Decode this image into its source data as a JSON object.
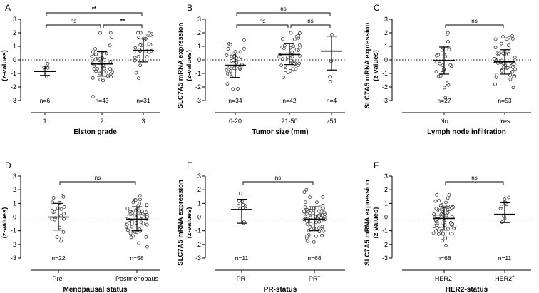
{
  "figure": {
    "y_axis": {
      "label_line1": "SLC7A5 mRNA expression",
      "label_line2": "(z-values)",
      "ticks": [
        -3,
        -2,
        -1,
        0,
        1,
        2,
        3
      ],
      "ylim": [
        -3,
        3
      ]
    }
  },
  "chart_data": [
    {
      "type": "scatter",
      "panel": "A",
      "xlabel": "Elston grade",
      "ylabel": "SLC7A5 mRNA expression (z-values)",
      "ylim": [
        -3,
        3
      ],
      "groups": [
        {
          "label": "1",
          "label_sup": "",
          "n_label": "n=6",
          "n": 6,
          "mean": -0.85,
          "sd_low": -1.15,
          "sd_high": -0.45,
          "spread": 0.4
        },
        {
          "label": "2",
          "label_sup": "",
          "n_label": "n=43",
          "n": 43,
          "mean": -0.3,
          "sd_low": -1.2,
          "sd_high": 0.6,
          "spread": 0.85
        },
        {
          "label": "3",
          "label_sup": "",
          "n_label": "n=31",
          "n": 31,
          "mean": 0.7,
          "sd_low": -0.15,
          "sd_high": 1.6,
          "spread": 0.8
        }
      ],
      "comparisons": [
        {
          "from": 0,
          "to": 2,
          "label": "**",
          "level": 2
        },
        {
          "from": 0,
          "to": 1,
          "label": "ns",
          "level": 1
        },
        {
          "from": 1,
          "to": 2,
          "label": "**",
          "level": 1
        }
      ]
    },
    {
      "type": "scatter",
      "panel": "B",
      "xlabel": "Tumor size (mm)",
      "ylabel": "SLC7A5 mRNA expression (z-values)",
      "ylim": [
        -3,
        3
      ],
      "groups": [
        {
          "label": "0-20",
          "label_sup": "",
          "n_label": "n=34",
          "n": 34,
          "mean": -0.4,
          "sd_low": -1.3,
          "sd_high": 0.5,
          "spread": 0.85
        },
        {
          "label": "21-50",
          "label_sup": "",
          "n_label": "n=42",
          "n": 42,
          "mean": 0.4,
          "sd_low": -0.35,
          "sd_high": 1.2,
          "spread": 0.8
        },
        {
          "label": ">51",
          "label_sup": "",
          "n_label": "n=4",
          "n": 4,
          "mean": 0.65,
          "sd_low": -0.75,
          "sd_high": 1.75,
          "spread": 1.0
        }
      ],
      "comparisons": [
        {
          "from": 0,
          "to": 2,
          "label": "ns",
          "level": 2
        },
        {
          "from": 0,
          "to": 1,
          "label": "ns",
          "level": 1
        },
        {
          "from": 1,
          "to": 2,
          "label": "ns",
          "level": 1
        }
      ]
    },
    {
      "type": "scatter",
      "panel": "C",
      "xlabel": "Lymph node infiltration",
      "ylabel": "SLC7A5 mRNA expression (z-values)",
      "ylim": [
        -3,
        3
      ],
      "groups": [
        {
          "label": "No",
          "label_sup": "",
          "n_label": "n=27",
          "n": 27,
          "mean": -0.05,
          "sd_low": -1.05,
          "sd_high": 0.95,
          "spread": 0.9
        },
        {
          "label": "Yes",
          "label_sup": "",
          "n_label": "n=53",
          "n": 53,
          "mean": -0.15,
          "sd_low": -1.05,
          "sd_high": 0.75,
          "spread": 0.85
        }
      ],
      "comparisons": [
        {
          "from": 0,
          "to": 1,
          "label": "ns",
          "level": 1
        }
      ]
    },
    {
      "type": "scatter",
      "panel": "D",
      "xlabel": "Menopausal status",
      "ylabel": "SLC7A5 mRNA expression (z-values)",
      "ylim": [
        -3,
        3
      ],
      "groups": [
        {
          "label": "Pre-",
          "label_sup": "",
          "n_label": "n=22",
          "n": 22,
          "mean": 0.0,
          "sd_low": -0.95,
          "sd_high": 1.0,
          "spread": 0.9
        },
        {
          "label": "Postmenopaus",
          "label_sup": "",
          "n_label": "n=58",
          "n": 58,
          "mean": -0.15,
          "sd_low": -1.0,
          "sd_high": 0.75,
          "spread": 0.85
        }
      ],
      "comparisons": [
        {
          "from": 0,
          "to": 1,
          "label": "ns",
          "level": 1
        }
      ]
    },
    {
      "type": "scatter",
      "panel": "E",
      "xlabel": "PR-status",
      "ylabel": "SLC7A5 mRNA expression (z-values)",
      "ylim": [
        -3,
        3
      ],
      "groups": [
        {
          "label": "PR",
          "label_sup": "-",
          "n_label": "n=11",
          "n": 11,
          "mean": 0.55,
          "sd_low": -0.45,
          "sd_high": 1.3,
          "spread": 0.75
        },
        {
          "label": "PR",
          "label_sup": "+",
          "n_label": "n=68",
          "n": 68,
          "mean": -0.15,
          "sd_low": -1.0,
          "sd_high": 0.75,
          "spread": 0.85
        }
      ],
      "comparisons": [
        {
          "from": 0,
          "to": 1,
          "label": "ns",
          "level": 1
        }
      ]
    },
    {
      "type": "scatter",
      "panel": "F",
      "xlabel": "HER2-status",
      "ylabel": "SLC7A5 mRNA expression (z-values)",
      "ylim": [
        -3,
        3
      ],
      "groups": [
        {
          "label": "HER2",
          "label_sup": "-",
          "n_label": "n=68",
          "n": 68,
          "mean": -0.1,
          "sd_low": -0.95,
          "sd_high": 0.75,
          "spread": 0.85
        },
        {
          "label": "HER2",
          "label_sup": "+",
          "n_label": "n=11",
          "n": 11,
          "mean": 0.2,
          "sd_low": -0.4,
          "sd_high": 1.05,
          "spread": 0.6
        }
      ],
      "comparisons": [
        {
          "from": 0,
          "to": 1,
          "label": "ns",
          "level": 1
        }
      ]
    }
  ]
}
